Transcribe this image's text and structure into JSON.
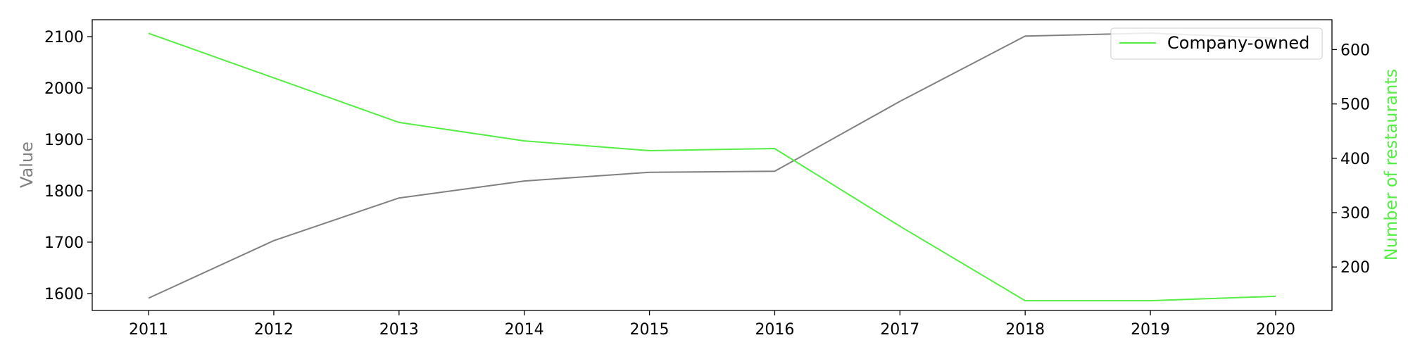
{
  "chart_data": {
    "type": "line",
    "x": [
      2011,
      2012,
      2013,
      2014,
      2015,
      2016,
      2017,
      2018,
      2019,
      2020
    ],
    "y_axis_left": {
      "label": "Value",
      "label_color": "#808080",
      "lim": [
        1567,
        2133
      ],
      "ticks": [
        1600,
        1700,
        1800,
        1900,
        2000,
        2100
      ]
    },
    "y_axis_right": {
      "label": "Number of restaurants",
      "label_color": "#55ee44",
      "lim": [
        120,
        655
      ],
      "ticks": [
        200,
        300,
        400,
        500,
        600
      ]
    },
    "x_axis": {
      "lim": [
        2010.55,
        2020.45
      ],
      "ticks": [
        2011,
        2012,
        2013,
        2014,
        2015,
        2016,
        2017,
        2018,
        2019,
        2020
      ]
    },
    "series": [
      {
        "axis": "left",
        "color": "#808080",
        "values": [
          1591,
          1703,
          1786,
          1819,
          1836,
          1838,
          1974,
          2101,
          2107,
          2097
        ]
      },
      {
        "name": "Company-owned",
        "axis": "right",
        "color": "#55ee44",
        "values": [
          630,
          548,
          466,
          432,
          414,
          418,
          275,
          138,
          138,
          146
        ]
      }
    ],
    "legend": {
      "placement": "top-right",
      "entries": [
        "Company-owned"
      ]
    },
    "grid": false
  }
}
